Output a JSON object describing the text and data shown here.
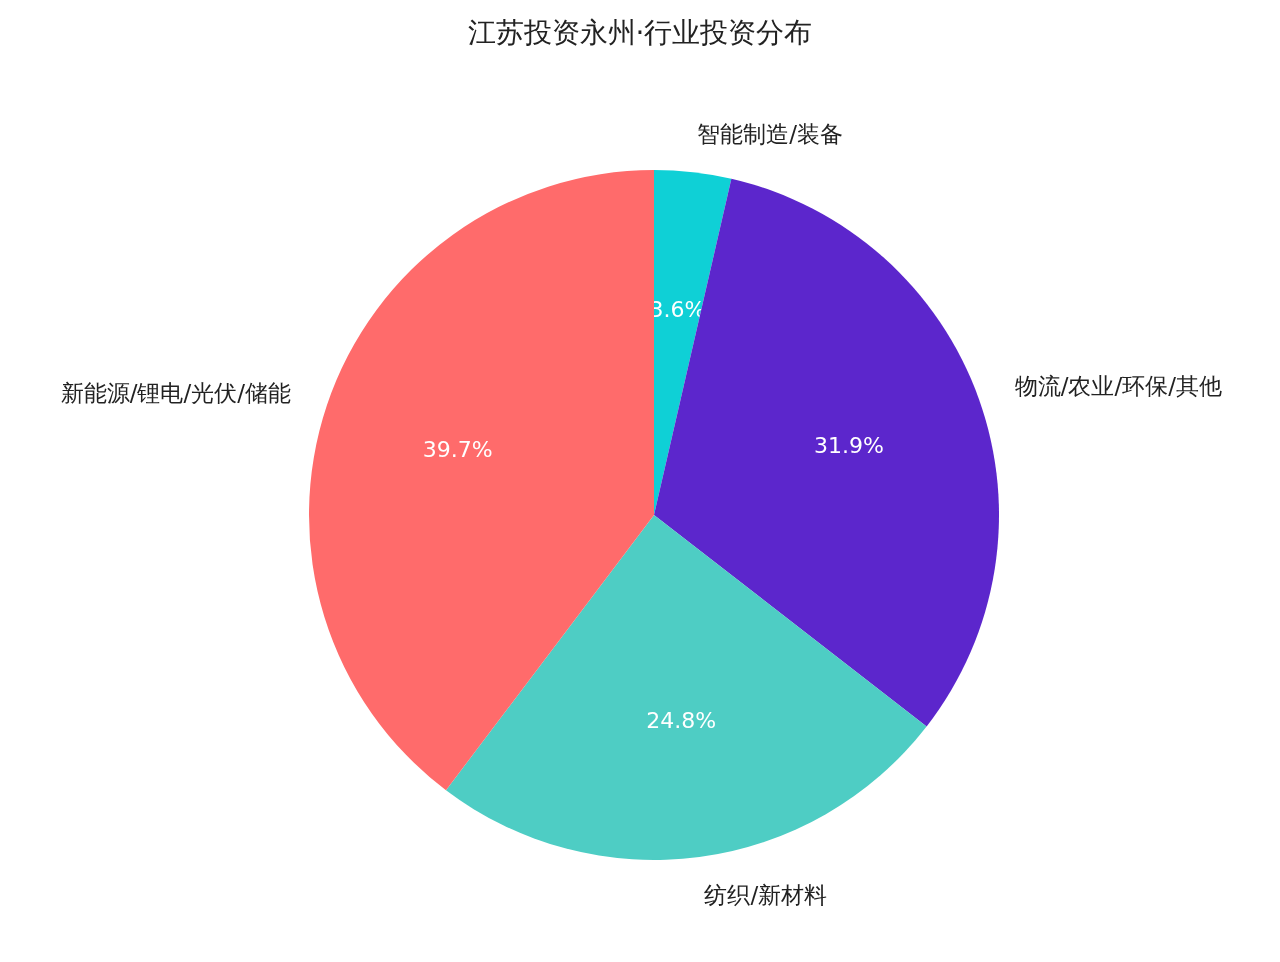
{
  "chart_data": {
    "type": "pie",
    "title": "江苏投资永州·行业投资分布",
    "categories": [
      "智能制造/装备",
      "物流/农业/环保/其他",
      "纺织/新材料",
      "新能源/锂电/光伏/储能"
    ],
    "values": [
      3.6,
      31.9,
      24.8,
      39.7
    ],
    "colors": [
      "#0fd0d6",
      "#5c26cc",
      "#4ecdc4",
      "#ff6b6b"
    ],
    "value_labels": [
      "3.6%",
      "31.9%",
      "24.8%",
      "39.7%"
    ]
  }
}
